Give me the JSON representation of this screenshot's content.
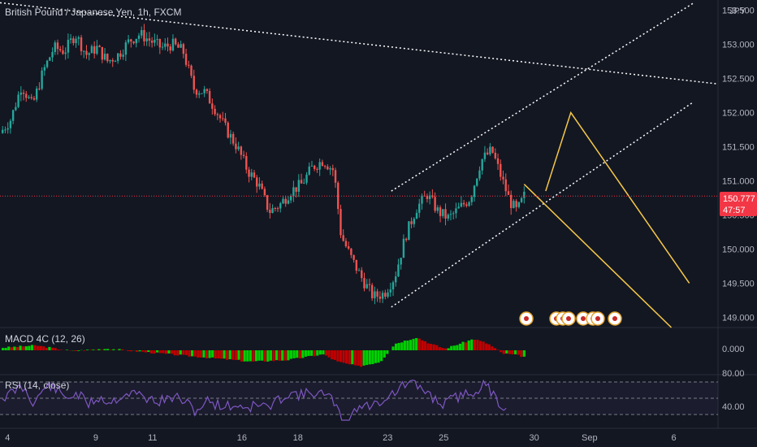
{
  "header": {
    "symbol_title": "British Pound / Japanese Yen, 1h, FXCM",
    "currency": "JPY"
  },
  "price_badge": {
    "price": "150.777",
    "countdown": "47:57"
  },
  "macd": {
    "label": "MACD 4C (12, 26)",
    "zero_label": "0.000"
  },
  "rsi": {
    "label": "RSI (14, close)",
    "upper_label": "80.00",
    "mid_label": "40.00"
  },
  "colors": {
    "bg": "#131722",
    "up": "#26a69a",
    "down": "#ef5350",
    "macd_up": "#00d000",
    "macd_down": "#c00000",
    "rsi_line": "#7e57c2",
    "channel": "#ffffff",
    "projection": "#f7c948",
    "price_badge": "#f23645"
  },
  "chart_data": {
    "type": "candlestick",
    "title": "British Pound / Japanese Yen, 1h, FXCM",
    "ylim": [
      148.85,
      153.65
    ],
    "y_ticks": [
      "153.500",
      "153.000",
      "152.500",
      "152.000",
      "151.500",
      "151.000",
      "150.500",
      "150.000",
      "149.500",
      "149.000"
    ],
    "x_ticks": [
      "4",
      "9",
      "11",
      "16",
      "18",
      "23",
      "25",
      "30",
      "Sep",
      "6"
    ],
    "close_path": [
      [
        0,
        151.7
      ],
      [
        0.015,
        151.9
      ],
      [
        0.03,
        152.4
      ],
      [
        0.045,
        152.1
      ],
      [
        0.06,
        152.6
      ],
      [
        0.075,
        152.95
      ],
      [
        0.09,
        152.9
      ],
      [
        0.105,
        153.15
      ],
      [
        0.12,
        152.85
      ],
      [
        0.135,
        152.95
      ],
      [
        0.15,
        152.75
      ],
      [
        0.165,
        152.85
      ],
      [
        0.18,
        153.05
      ],
      [
        0.195,
        153.15
      ],
      [
        0.21,
        153.05
      ],
      [
        0.225,
        152.95
      ],
      [
        0.24,
        153.0
      ],
      [
        0.255,
        152.9
      ],
      [
        0.27,
        152.35
      ],
      [
        0.285,
        152.3
      ],
      [
        0.3,
        152.05
      ],
      [
        0.315,
        151.75
      ],
      [
        0.33,
        151.5
      ],
      [
        0.345,
        151.15
      ],
      [
        0.36,
        150.95
      ],
      [
        0.375,
        150.55
      ],
      [
        0.39,
        150.65
      ],
      [
        0.405,
        150.85
      ],
      [
        0.42,
        150.95
      ],
      [
        0.435,
        151.2
      ],
      [
        0.45,
        151.3
      ],
      [
        0.465,
        151.15
      ],
      [
        0.475,
        150.2
      ],
      [
        0.49,
        149.85
      ],
      [
        0.505,
        149.55
      ],
      [
        0.52,
        149.3
      ],
      [
        0.535,
        149.35
      ],
      [
        0.55,
        149.6
      ],
      [
        0.565,
        150.2
      ],
      [
        0.58,
        150.6
      ],
      [
        0.595,
        150.8
      ],
      [
        0.61,
        150.55
      ],
      [
        0.625,
        150.45
      ],
      [
        0.64,
        150.6
      ],
      [
        0.655,
        150.75
      ],
      [
        0.67,
        151.3
      ],
      [
        0.685,
        151.45
      ],
      [
        0.695,
        151.15
      ],
      [
        0.71,
        150.7
      ],
      [
        0.72,
        150.55
      ],
      [
        0.73,
        150.777
      ]
    ],
    "annotations": {
      "descending_trendline": [
        [
          152.95,
          153.61
        ],
        [
          152.42,
          152.42
        ]
      ],
      "channel_upper": [
        [
          0.545,
          150.85
        ],
        [
          0.965,
          153.6
        ]
      ],
      "channel_lower": [
        [
          0.545,
          149.15
        ],
        [
          0.965,
          152.15
        ]
      ],
      "projection_path": [
        [
          0.76,
          150.85
        ],
        [
          0.795,
          152.0
        ],
        [
          0.96,
          149.5
        ]
      ],
      "projection_down": [
        [
          0.73,
          150.95
        ],
        [
          0.935,
          148.85
        ]
      ]
    },
    "current_price": 150.777
  }
}
